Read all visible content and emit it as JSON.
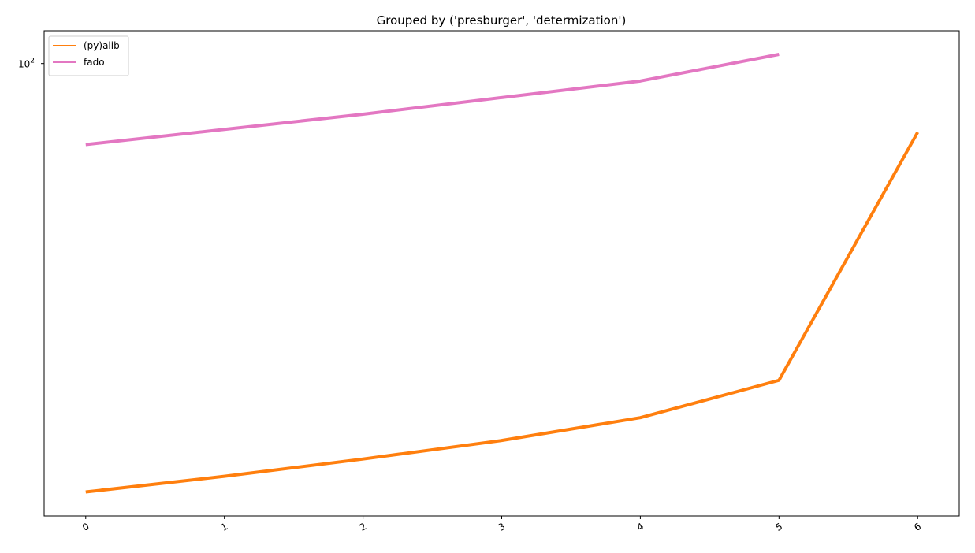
{
  "chart_data": {
    "type": "line",
    "title": "Grouped by ('presburger', 'determization')",
    "xlabel": "",
    "ylabel": "",
    "y_scale": "log",
    "ylim": [
      11.5,
      117
    ],
    "xlim": [
      -0.3,
      6.3
    ],
    "x": [
      0,
      1,
      2,
      3,
      4,
      5,
      6
    ],
    "x_tick_labels": [
      "0",
      "1",
      "2",
      "3",
      "4",
      "5",
      "6"
    ],
    "y_ticks": [
      {
        "value": 100,
        "base": "10",
        "exp": "2"
      }
    ],
    "grid": false,
    "legend_position": "top-left",
    "series": [
      {
        "name": "(py)alib",
        "color": "#ff7f0e",
        "x": [
          0,
          1,
          2,
          3,
          4,
          5,
          6
        ],
        "values": [
          12.9,
          13.9,
          15.1,
          16.5,
          18.4,
          22.0,
          72.0
        ]
      },
      {
        "name": "fado",
        "color": "#e377c2",
        "x": [
          0,
          1,
          2,
          3,
          4,
          5
        ],
        "values": [
          67.9,
          73.0,
          78.5,
          85.0,
          92.0,
          104.5
        ]
      }
    ]
  }
}
